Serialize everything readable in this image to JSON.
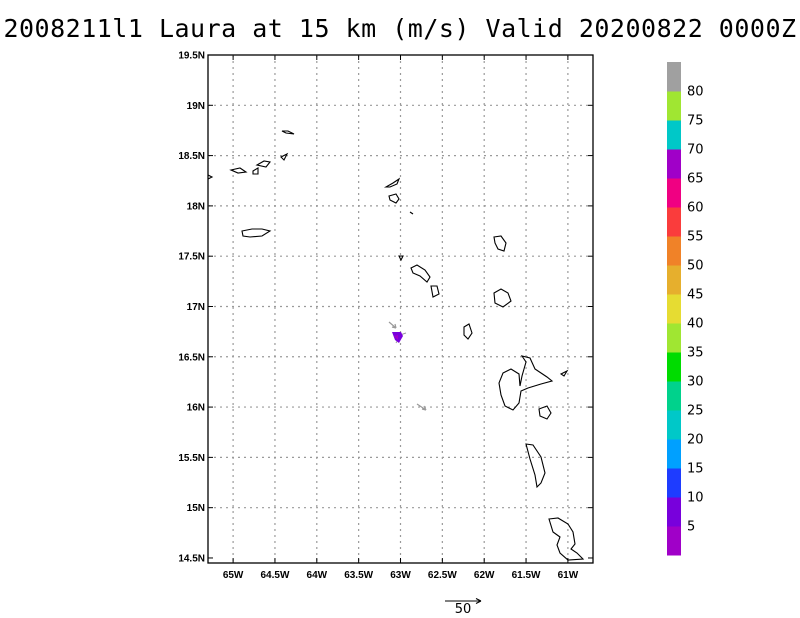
{
  "title": "2008211l1 Laura at 15 km (m/s) Valid 20200822 0000Z",
  "map": {
    "lon_range": [
      -65.3,
      -60.7
    ],
    "lat_range": [
      14.45,
      19.5
    ],
    "lon_ticks": [
      {
        "value": -65.0,
        "label": "65W"
      },
      {
        "value": -64.5,
        "label": "64.5W"
      },
      {
        "value": -64.0,
        "label": "64W"
      },
      {
        "value": -63.5,
        "label": "63.5W"
      },
      {
        "value": -63.0,
        "label": "63W"
      },
      {
        "value": -62.5,
        "label": "62.5W"
      },
      {
        "value": -62.0,
        "label": "62W"
      },
      {
        "value": -61.5,
        "label": "61.5W"
      },
      {
        "value": -61.0,
        "label": "61W"
      }
    ],
    "lat_ticks": [
      {
        "value": 19.5,
        "label": "19.5N"
      },
      {
        "value": 19.0,
        "label": "19N"
      },
      {
        "value": 18.5,
        "label": "18.5N"
      },
      {
        "value": 18.0,
        "label": "18N"
      },
      {
        "value": 17.5,
        "label": "17.5N"
      },
      {
        "value": 17.0,
        "label": "17N"
      },
      {
        "value": 16.5,
        "label": "16.5N"
      },
      {
        "value": 16.0,
        "label": "16N"
      },
      {
        "value": 15.5,
        "label": "15.5N"
      },
      {
        "value": 15.0,
        "label": "15N"
      },
      {
        "value": 14.5,
        "label": "14.5N"
      }
    ],
    "grid": true,
    "colorbar": {
      "labels": [
        "5",
        "10",
        "15",
        "20",
        "25",
        "30",
        "35",
        "40",
        "45",
        "50",
        "55",
        "60",
        "65",
        "70",
        "75",
        "80"
      ],
      "colors": [
        "#a000c8",
        "#7800dc",
        "#1e3cff",
        "#00a0ff",
        "#00c8c8",
        "#00d28c",
        "#00dc00",
        "#a0e632",
        "#e6dc32",
        "#e6af2d",
        "#f08228",
        "#fa3c3c",
        "#f00082",
        "#a000c8",
        "#00c8c8",
        "#a0e632",
        "#a0a0a0"
      ]
    },
    "reference_vector": {
      "label": "50"
    }
  }
}
